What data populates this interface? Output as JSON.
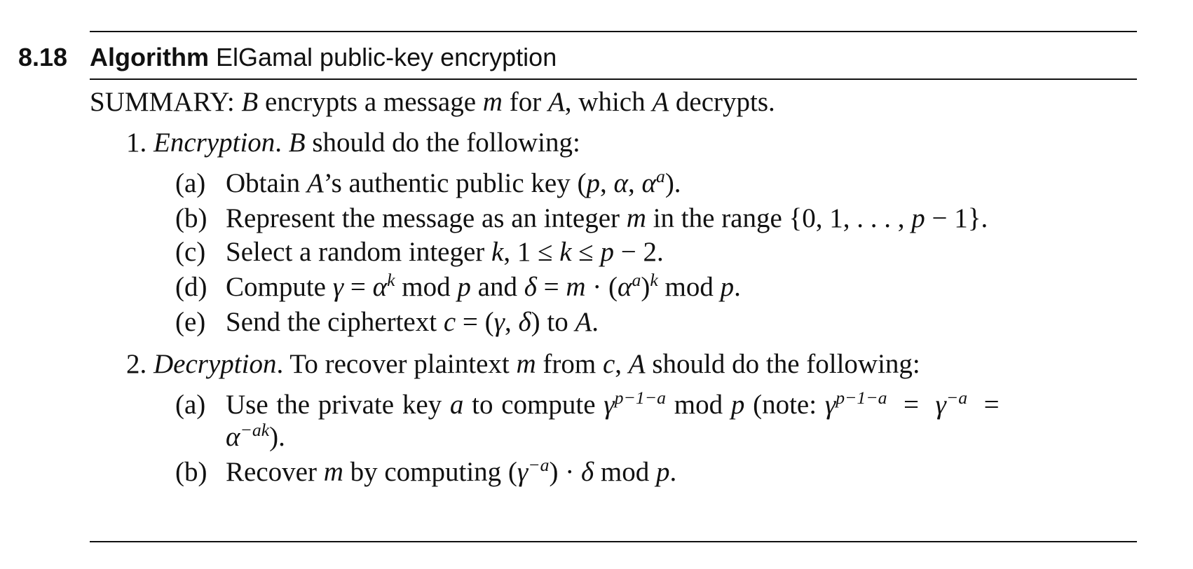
{
  "heading": {
    "number": "8.18",
    "label": "Algorithm",
    "title": "ElGamal public-key encryption"
  },
  "summary": {
    "label": "SUMMARY:",
    "text": " encrypts a message  for , which  decrypts."
  },
  "steps": [
    {
      "number": "1.",
      "name": "Encryption",
      "intro": "should do the following:",
      "substeps": [
        {
          "label": "(a)",
          "text": "Obtain A’s authentic public key (p, α, α^a)."
        },
        {
          "label": "(b)",
          "text": "Represent the message as an integer m in the range {0, 1, . . . , p − 1}."
        },
        {
          "label": "(c)",
          "text": "Select a random integer k, 1 ≤ k ≤ p − 2."
        },
        {
          "label": "(d)",
          "text": "Compute γ = α^k mod p and δ = m · (α^a)^k mod p."
        },
        {
          "label": "(e)",
          "text": "Send the ciphertext c = (γ, δ) to A."
        }
      ]
    },
    {
      "number": "2.",
      "name": "Decryption",
      "intro": "To recover plaintext m from c, A should do the following:",
      "substeps": [
        {
          "label": "(a)",
          "text": "Use the private key a to compute γ^(p−1−a) mod p (note: γ^(p−1−a) = γ^(−a) = α^(−ak))."
        },
        {
          "label": "(b)",
          "text": "Recover m by computing (γ^(−a)) · δ mod p."
        }
      ]
    }
  ]
}
